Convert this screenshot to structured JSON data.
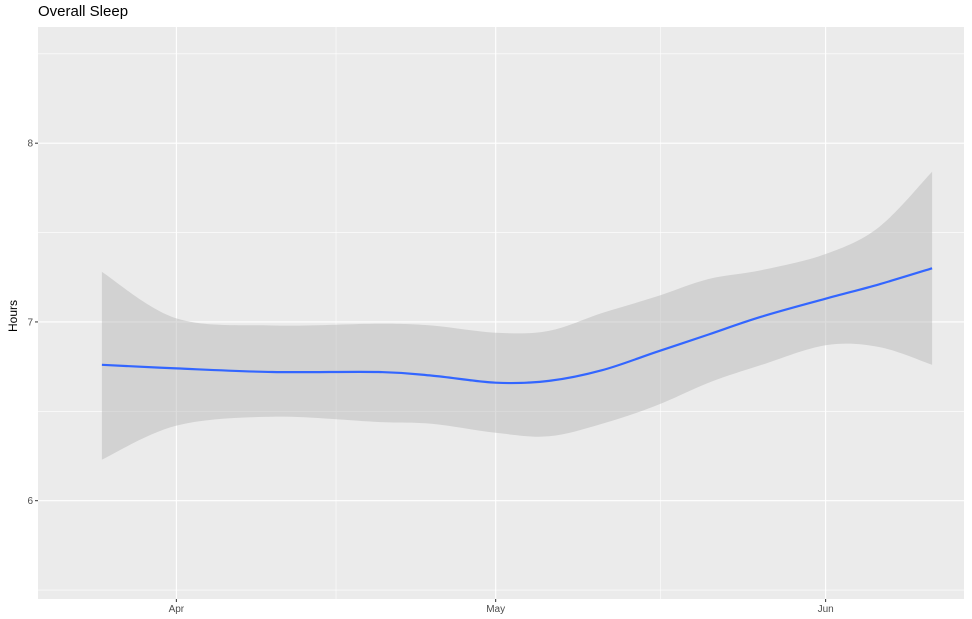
{
  "chart_data": {
    "type": "line",
    "title": "Overall Sleep",
    "xlabel": "",
    "ylabel": "Hours",
    "x_ticks": [
      "Apr",
      "May",
      "Jun"
    ],
    "y_ticks": [
      "6",
      "7",
      "8"
    ],
    "ylim": [
      5.45,
      8.65
    ],
    "xlim": [
      "2022-03-19",
      "2022-06-14"
    ],
    "grid": true,
    "legend": "none",
    "series": [
      {
        "x": [
          "2022-03-25",
          "2022-04-01",
          "2022-04-10",
          "2022-04-20",
          "2022-04-25",
          "2022-05-01",
          "2022-05-06",
          "2022-05-11",
          "2022-05-16",
          "2022-05-21",
          "2022-05-26",
          "2022-06-01",
          "2022-06-06",
          "2022-06-11"
        ],
        "y": [
          6.76,
          6.74,
          6.72,
          6.72,
          6.7,
          6.66,
          6.67,
          6.73,
          6.83,
          6.93,
          7.03,
          7.13,
          7.21,
          7.3
        ],
        "ci_low": [
          6.23,
          6.42,
          6.47,
          6.44,
          6.43,
          6.38,
          6.36,
          6.43,
          6.53,
          6.66,
          6.76,
          6.87,
          6.86,
          6.76
        ],
        "ci_high": [
          7.28,
          7.02,
          6.98,
          6.99,
          6.98,
          6.94,
          6.95,
          7.05,
          7.14,
          7.24,
          7.29,
          7.38,
          7.53,
          7.84
        ]
      }
    ],
    "colors": {
      "line": "#3366ff",
      "ribbon": "#b3b3b3",
      "panel": "#ebebeb",
      "grid": "#ffffff"
    }
  }
}
